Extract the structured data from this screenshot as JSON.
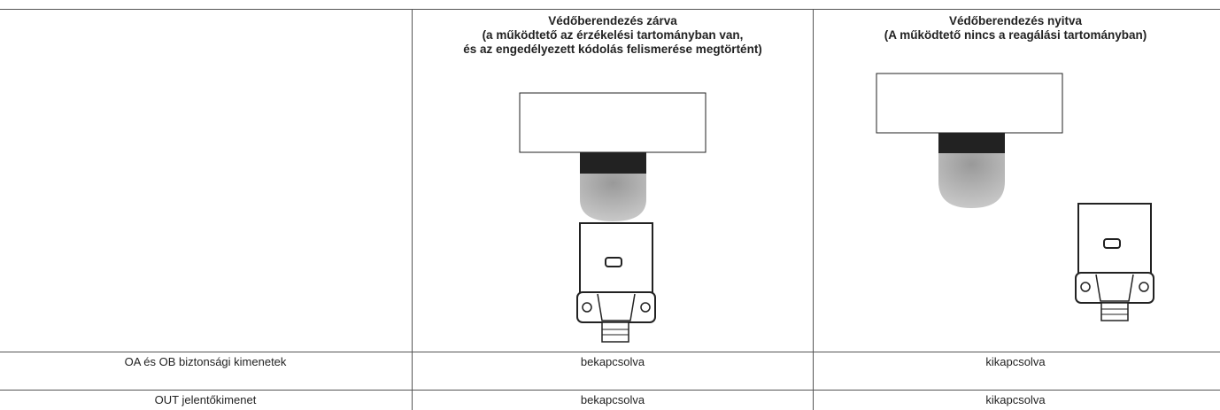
{
  "table": {
    "header": [
      "",
      "Védőberendezés zárva\n(a működtető az érzékelési tartományban van,\nés az engedélyezett kódolás felismerése megtörtént)",
      "Védőberendezés nyitva\n(A működtető nincs a reagálási tartományban)"
    ],
    "rows": [
      [
        "OA és OB biztonsági kimenetek",
        "bekapcsolva",
        "kikapcsolva"
      ],
      [
        "OUT jelentőkimenet",
        "bekapcsolva",
        "kikapcsolva"
      ]
    ]
  }
}
